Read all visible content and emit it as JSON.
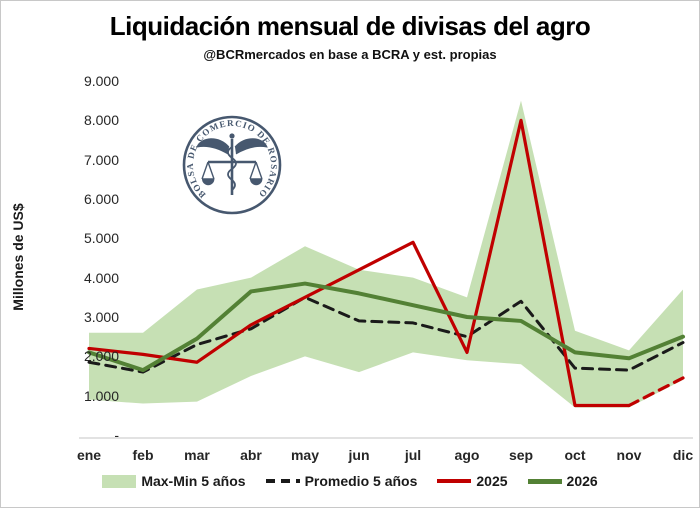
{
  "header": {
    "title": "Liquidación mensual de divisas del agro",
    "subtitle": "@BCRmercados en base a BCRA y est. propias"
  },
  "watermark": {
    "text": "BOLSA DE COMERCIO DE ROSARIO"
  },
  "chart_data": {
    "type": "line",
    "title": "Liquidación mensual de divisas del agro",
    "subtitle": "@BCRmercados en base a BCRA y est. propias",
    "xlabel": "",
    "ylabel": "Millones de US$",
    "ylim": [
      0,
      9000
    ],
    "grid": false,
    "legend_position": "bottom",
    "y_ticks": [
      {
        "label": "9.000",
        "value": 9000
      },
      {
        "label": "8.000",
        "value": 8000
      },
      {
        "label": "7.000",
        "value": 7000
      },
      {
        "label": "6.000",
        "value": 6000
      },
      {
        "label": "5.000",
        "value": 5000
      },
      {
        "label": "4.000",
        "value": 4000
      },
      {
        "label": "3.000",
        "value": 3000
      },
      {
        "label": "2.000",
        "value": 2000
      },
      {
        "label": "1.000",
        "value": 1000
      },
      {
        "label": "-",
        "value": 0
      }
    ],
    "categories": [
      "ene",
      "feb",
      "mar",
      "abr",
      "may",
      "jun",
      "jul",
      "ago",
      "sep",
      "oct",
      "nov",
      "dic"
    ],
    "band": {
      "name": "Max-Min 5 años",
      "color": "#c6e0b4",
      "max": [
        2600,
        2600,
        3700,
        4000,
        4800,
        4200,
        4000,
        3500,
        8500,
        2650,
        2150,
        3700
      ],
      "min": [
        900,
        800,
        850,
        1500,
        2000,
        1600,
        2100,
        1900,
        1800,
        700,
        700,
        1400
      ]
    },
    "series": [
      {
        "name": "Promedio 5 años",
        "color": "#1a1a1a",
        "style": "dashed",
        "values": [
          1850,
          1600,
          2300,
          2700,
          3500,
          2900,
          2850,
          2500,
          3400,
          1700,
          1650,
          2350
        ]
      },
      {
        "name": "2025",
        "color": "#c00000",
        "style": "solid",
        "dashed_from_index": 10,
        "values": [
          2200,
          2050,
          1850,
          2800,
          3500,
          4200,
          4900,
          2100,
          8000,
          750,
          750,
          1450
        ]
      },
      {
        "name": "2026",
        "color": "#538135",
        "style": "solid",
        "values": [
          2100,
          1650,
          2450,
          3650,
          3850,
          3600,
          3300,
          3000,
          2900,
          2100,
          1950,
          2500
        ]
      }
    ]
  }
}
